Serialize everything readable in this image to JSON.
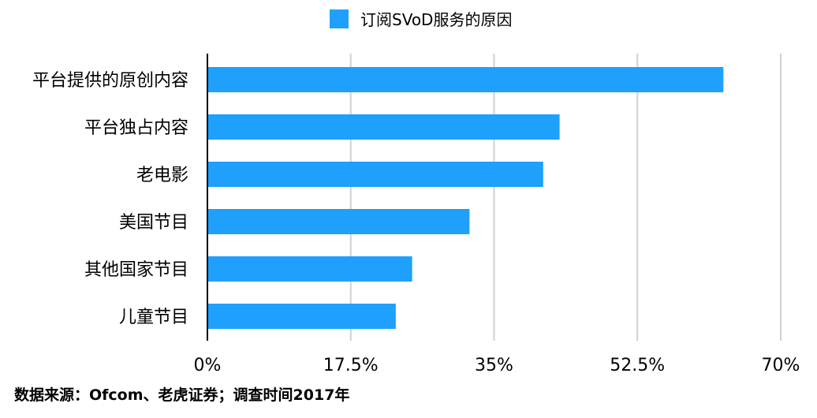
{
  "chart_data": {
    "type": "bar",
    "orientation": "horizontal",
    "categories": [
      "平台提供的原创内容",
      "平台独占内容",
      "老电影",
      "美国节目",
      "其他国家节目",
      "儿童节目"
    ],
    "series": [
      {
        "name": "订阅SVoD服务的原因",
        "values": [
          63,
          43,
          41,
          32,
          25,
          23
        ],
        "color": "#1ea0fc"
      }
    ],
    "xlim": [
      0,
      70
    ],
    "ticks": [
      0,
      17.5,
      35,
      52.5,
      70
    ],
    "tick_labels": [
      "0%",
      "17.5%",
      "35%",
      "52.5%",
      "70%"
    ],
    "grid": true,
    "legend_position": "top-center",
    "gridline_color": "#d0d0d0",
    "axis_color": "#000000"
  },
  "footer": {
    "source": "数据来源：Ofcom、老虎证券；调查时间2017年"
  }
}
